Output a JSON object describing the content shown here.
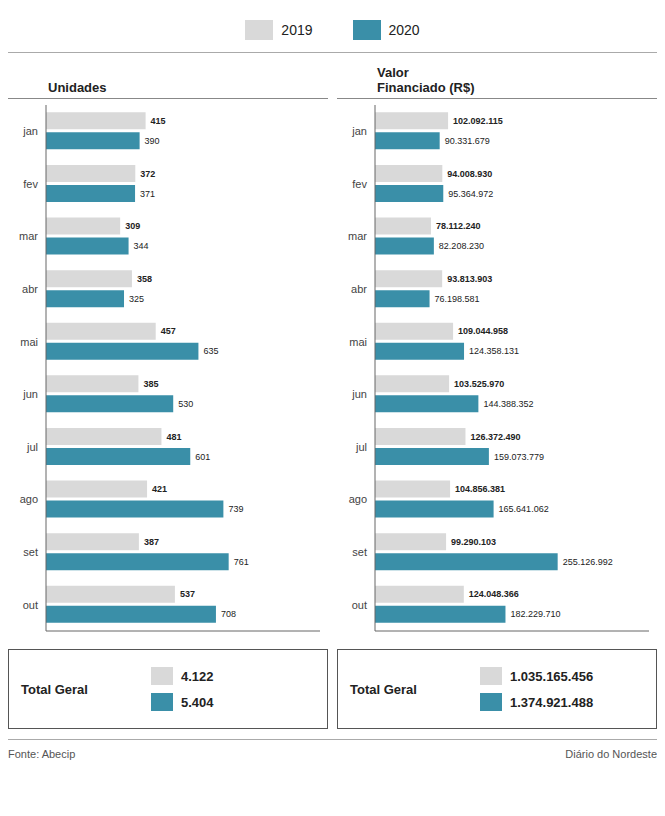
{
  "chart_data": [
    {
      "type": "bar",
      "orientation": "horizontal",
      "title": "Unidades",
      "categories": [
        "jan",
        "fev",
        "mar",
        "abr",
        "mai",
        "jun",
        "jul",
        "ago",
        "set",
        "out"
      ],
      "series": [
        {
          "name": "2019",
          "color": "#d9d9d9",
          "values": [
            415,
            372,
            309,
            358,
            457,
            385,
            481,
            421,
            387,
            537
          ],
          "total": "4.122"
        },
        {
          "name": "2020",
          "color": "#3a8fa8",
          "values": [
            390,
            371,
            344,
            325,
            635,
            530,
            601,
            739,
            761,
            708
          ],
          "total": "5.404"
        }
      ],
      "xlim": [
        0,
        1141.5
      ],
      "grid": false,
      "legend": "top",
      "data_labels": true,
      "tick_labels": "y",
      "total_title": "Total Geral"
    },
    {
      "type": "bar",
      "orientation": "horizontal",
      "title": "Valor\nFinanciado (R$)",
      "categories": [
        "jan",
        "fev",
        "mar",
        "abr",
        "mai",
        "jun",
        "jul",
        "ago",
        "set",
        "out"
      ],
      "series": [
        {
          "name": "2019",
          "color": "#d9d9d9",
          "values": [
            102092115,
            94008930,
            78112240,
            93813903,
            109044958,
            103525970,
            126372490,
            104856381,
            99290103,
            124048366
          ],
          "value_labels": [
            "102.092.115",
            "94.008.930",
            "78.112.240",
            "93.813.903",
            "109.044.958",
            "103.525.970",
            "126.372.490",
            "104.856.381",
            "99.290.103",
            "124.048.366"
          ],
          "total": "1.035.165.456"
        },
        {
          "name": "2020",
          "color": "#3a8fa8",
          "values": [
            90331679,
            95364972,
            82208230,
            76198581,
            124358131,
            144388352,
            159073779,
            165641062,
            255126992,
            182229710
          ],
          "value_labels": [
            "90.331.679",
            "95.364.972",
            "82.208.230",
            "76.198.581",
            "124.358.131",
            "144.388.352",
            "159.073.779",
            "165.641.062",
            "255.126.992",
            "182.229.710"
          ],
          "total": "1.374.921.488"
        }
      ],
      "xlim": [
        0,
        382690488
      ],
      "grid": false,
      "legend": "top",
      "data_labels": true,
      "tick_labels": "y",
      "total_title": "Total Geral"
    }
  ],
  "annotations": [
    "Fonte: Abecip",
    "Diário do Nordeste"
  ]
}
